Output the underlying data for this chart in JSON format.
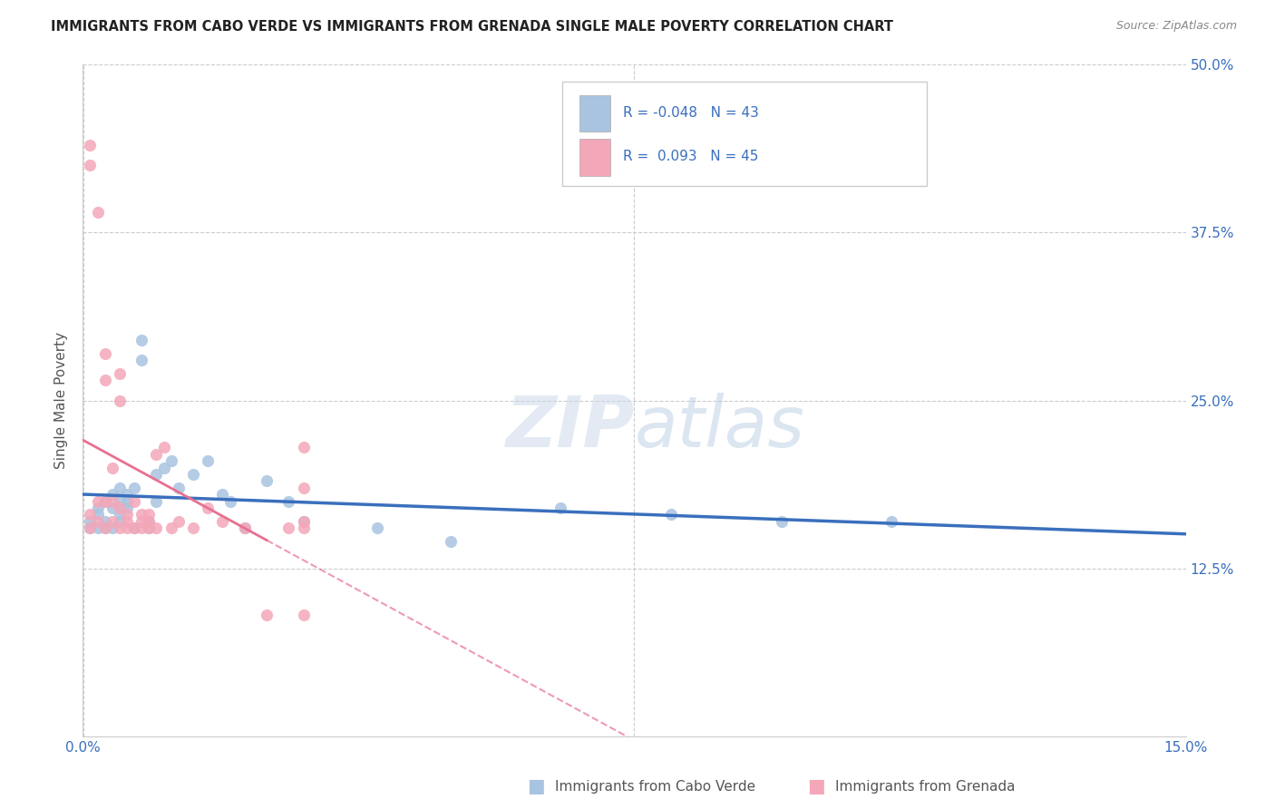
{
  "title": "IMMIGRANTS FROM CABO VERDE VS IMMIGRANTS FROM GRENADA SINGLE MALE POVERTY CORRELATION CHART",
  "source": "Source: ZipAtlas.com",
  "ylabel": "Single Male Poverty",
  "legend_label1": "Immigrants from Cabo Verde",
  "legend_label2": "Immigrants from Grenada",
  "r1": -0.048,
  "n1": 43,
  "r2": 0.093,
  "n2": 45,
  "xmin": 0.0,
  "xmax": 0.15,
  "ymin": 0.0,
  "ymax": 0.5,
  "color1": "#a8c4e0",
  "color2": "#f4a7b9",
  "line1_color": "#3a6fbd",
  "line2_color": "#e87090",
  "right_ytick_labels": [
    "50.0%",
    "37.5%",
    "25.0%",
    "12.5%"
  ],
  "right_ytick_values": [
    0.5,
    0.375,
    0.25,
    0.125
  ],
  "cabo_verde_x": [
    0.001,
    0.001,
    0.002,
    0.002,
    0.002,
    0.003,
    0.003,
    0.003,
    0.004,
    0.004,
    0.004,
    0.005,
    0.005,
    0.005,
    0.005,
    0.006,
    0.006,
    0.006,
    0.007,
    0.007,
    0.008,
    0.008,
    0.009,
    0.009,
    0.01,
    0.01,
    0.011,
    0.012,
    0.013,
    0.015,
    0.017,
    0.019,
    0.02,
    0.022,
    0.025,
    0.028,
    0.03,
    0.04,
    0.05,
    0.065,
    0.08,
    0.095,
    0.11
  ],
  "cabo_verde_y": [
    0.16,
    0.155,
    0.17,
    0.165,
    0.155,
    0.175,
    0.16,
    0.155,
    0.17,
    0.18,
    0.155,
    0.185,
    0.175,
    0.165,
    0.16,
    0.18,
    0.17,
    0.175,
    0.185,
    0.155,
    0.28,
    0.295,
    0.155,
    0.16,
    0.195,
    0.175,
    0.2,
    0.205,
    0.185,
    0.195,
    0.205,
    0.18,
    0.175,
    0.155,
    0.19,
    0.175,
    0.16,
    0.155,
    0.145,
    0.17,
    0.165,
    0.16,
    0.16
  ],
  "grenada_x": [
    0.001,
    0.001,
    0.001,
    0.001,
    0.002,
    0.002,
    0.002,
    0.003,
    0.003,
    0.003,
    0.003,
    0.004,
    0.004,
    0.004,
    0.005,
    0.005,
    0.005,
    0.005,
    0.006,
    0.006,
    0.006,
    0.007,
    0.007,
    0.008,
    0.008,
    0.008,
    0.009,
    0.009,
    0.009,
    0.01,
    0.01,
    0.011,
    0.012,
    0.013,
    0.015,
    0.017,
    0.019,
    0.022,
    0.025,
    0.028,
    0.03,
    0.03,
    0.03,
    0.03,
    0.03
  ],
  "grenada_y": [
    0.44,
    0.425,
    0.165,
    0.155,
    0.39,
    0.175,
    0.16,
    0.285,
    0.265,
    0.175,
    0.155,
    0.2,
    0.175,
    0.16,
    0.27,
    0.25,
    0.17,
    0.155,
    0.165,
    0.16,
    0.155,
    0.175,
    0.155,
    0.165,
    0.16,
    0.155,
    0.165,
    0.16,
    0.155,
    0.21,
    0.155,
    0.215,
    0.155,
    0.16,
    0.155,
    0.17,
    0.16,
    0.155,
    0.09,
    0.155,
    0.215,
    0.185,
    0.16,
    0.155,
    0.09
  ]
}
